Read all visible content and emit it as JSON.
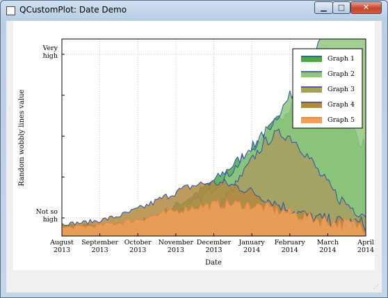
{
  "window": {
    "title": "QCustomPlot: Date Demo",
    "minimize_label": "▁",
    "maximize_label": "□",
    "close_label": "✕"
  },
  "chart_data": {
    "type": "area",
    "xlabel": "Date",
    "ylabel": "Random wobbly lines value",
    "x_tick_labels": [
      [
        "August",
        "2013"
      ],
      [
        "September",
        "2013"
      ],
      [
        "October",
        "2013"
      ],
      [
        "November",
        "2013"
      ],
      [
        "December",
        "2013"
      ],
      [
        "January",
        "2014"
      ],
      [
        "February",
        "2014"
      ],
      [
        "March",
        "2014"
      ],
      [
        "April",
        "2014"
      ]
    ],
    "y_tick_labels": [
      [
        "Very",
        "high"
      ],
      [
        "Not so",
        "high"
      ]
    ],
    "grid": true,
    "legend_position": "top-right",
    "series": [
      {
        "name": "Graph 1",
        "color": "#2a4fb0",
        "fill": "#4ea64a"
      },
      {
        "name": "Graph 2",
        "color": "#2a4fb0",
        "fill": "#8fc77e"
      },
      {
        "name": "Graph 3",
        "color": "#2a4fb0",
        "fill": "#a89f5f"
      },
      {
        "name": "Graph 4",
        "color": "#2a4fb0",
        "fill": "#b28a3f"
      },
      {
        "name": "Graph 5",
        "color": "#e8823a",
        "fill": "#f0a05a"
      }
    ]
  }
}
